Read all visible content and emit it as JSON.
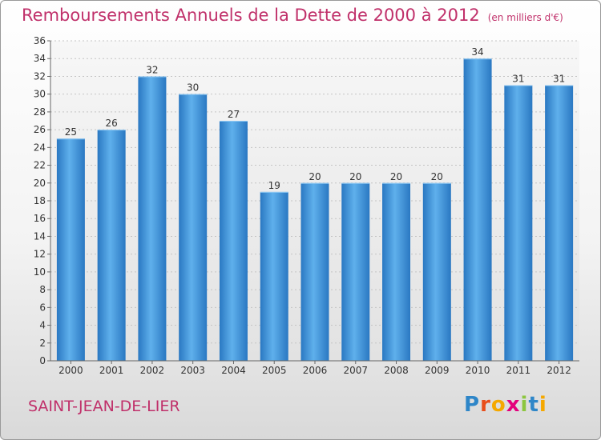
{
  "title": "Remboursements Annuels de la Dette de 2000 à 2012",
  "unit": "(en milliers d'€)",
  "city": "SAINT-JEAN-DE-LIER",
  "logo": {
    "text": "Proxiti",
    "letters": [
      "P",
      "r",
      "o",
      "x",
      "i",
      "t",
      "i"
    ],
    "colors": [
      "#2e86c8",
      "#e84e1b",
      "#f5a800",
      "#e4007c",
      "#8cc63f",
      "#2e86c8",
      "#f5a800"
    ]
  },
  "chart_data": {
    "type": "bar",
    "categories": [
      "2000",
      "2001",
      "2002",
      "2003",
      "2004",
      "2005",
      "2006",
      "2007",
      "2008",
      "2009",
      "2010",
      "2011",
      "2012"
    ],
    "values": [
      25,
      26,
      32,
      30,
      27,
      19,
      20,
      20,
      20,
      20,
      34,
      31,
      31
    ],
    "ylim": [
      0,
      36
    ],
    "yticks": [
      0,
      2,
      4,
      6,
      8,
      10,
      12,
      14,
      16,
      18,
      20,
      22,
      24,
      26,
      28,
      30,
      32,
      34,
      36
    ],
    "grid": true,
    "bar_color": "#3f8fd6",
    "xlabel": "",
    "ylabel": ""
  }
}
